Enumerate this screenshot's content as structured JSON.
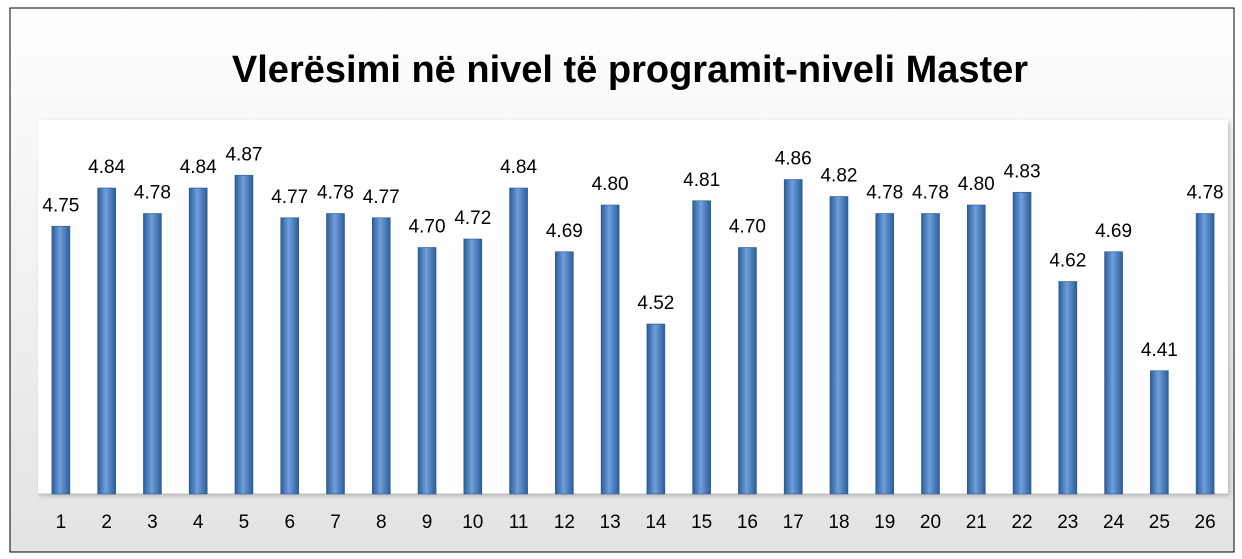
{
  "chart_data": {
    "type": "bar",
    "title": "Vlerësimi në nivel të programit-niveli Master",
    "categories": [
      "1",
      "2",
      "3",
      "4",
      "5",
      "6",
      "7",
      "8",
      "9",
      "10",
      "11",
      "12",
      "13",
      "14",
      "15",
      "16",
      "17",
      "18",
      "19",
      "20",
      "21",
      "22",
      "23",
      "24",
      "25",
      "26"
    ],
    "values": [
      4.75,
      4.84,
      4.78,
      4.84,
      4.87,
      4.77,
      4.78,
      4.77,
      4.7,
      4.72,
      4.84,
      4.69,
      4.8,
      4.52,
      4.81,
      4.7,
      4.86,
      4.82,
      4.78,
      4.78,
      4.8,
      4.83,
      4.62,
      4.69,
      4.41,
      4.78
    ],
    "value_labels": [
      "4.75",
      "4.84",
      "4.78",
      "4.84",
      "4.87",
      "4.77",
      "4.78",
      "4.77",
      "4.70",
      "4.72",
      "4.84",
      "4.69",
      "4.80",
      "4.52",
      "4.81",
      "4.70",
      "4.86",
      "4.82",
      "4.78",
      "4.78",
      "4.80",
      "4.83",
      "4.62",
      "4.69",
      "4.41",
      "4.78"
    ],
    "color": "#4a7ebb",
    "ylim": [
      4.12,
      5.0
    ]
  }
}
